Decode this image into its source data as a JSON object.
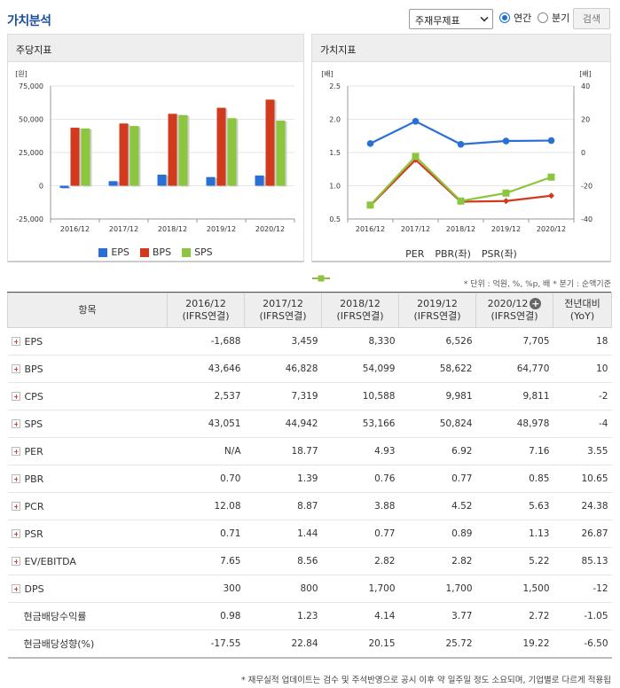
{
  "header": {
    "title": "가치분석",
    "select_value": "주재무제표",
    "radio_annual": "연간",
    "radio_quarter": "분기",
    "search_label": "검색"
  },
  "left_panel": {
    "title": "주당지표",
    "unit": "[원]",
    "chart_data": {
      "type": "bar",
      "categories": [
        "2016/12",
        "2017/12",
        "2018/12",
        "2019/12",
        "2020/12"
      ],
      "series": [
        {
          "name": "EPS",
          "color": "#2a6fd6",
          "values": [
            -1688,
            3459,
            8330,
            6526,
            7705
          ]
        },
        {
          "name": "BPS",
          "color": "#d23a1e",
          "values": [
            43646,
            46828,
            54099,
            58622,
            64770
          ]
        },
        {
          "name": "SPS",
          "color": "#8cc63f",
          "values": [
            43051,
            44942,
            53166,
            50824,
            48978
          ]
        }
      ],
      "ylim": [
        -25000,
        75000
      ],
      "yticks": [
        "75,000",
        "50,000",
        "25,000",
        "0",
        "-25,000"
      ],
      "ytick_values": [
        75000,
        50000,
        25000,
        0,
        -25000
      ],
      "legend": "bottom"
    }
  },
  "right_panel": {
    "title": "가치지표",
    "unit_left": "[배]",
    "unit_right": "[배]",
    "chart_data": {
      "type": "line",
      "categories": [
        "2016/12",
        "2017/12",
        "2018/12",
        "2019/12",
        "2020/12"
      ],
      "series": [
        {
          "name": "PER",
          "axis": "right",
          "color": "#2a6fd6",
          "marker": "circle",
          "values": [
            null,
            18.77,
            4.93,
            6.92,
            7.16
          ]
        },
        {
          "name": "PBR(좌)",
          "axis": "left",
          "color": "#d23a1e",
          "marker": "diamond",
          "values": [
            0.7,
            1.39,
            0.76,
            0.77,
            0.85
          ]
        },
        {
          "name": "PSR(좌)",
          "axis": "left",
          "color": "#8cc63f",
          "marker": "square",
          "values": [
            0.71,
            1.44,
            0.77,
            0.89,
            1.13
          ]
        }
      ],
      "ylim_left": [
        0.5,
        2.5
      ],
      "yticks_left": [
        "2.5",
        "2.0",
        "1.5",
        "1.0",
        "0.5"
      ],
      "ytick_values_left": [
        2.5,
        2.0,
        1.5,
        1.0,
        0.5
      ],
      "ylim_right": [
        -40,
        40
      ],
      "yticks_right": [
        "40",
        "20",
        "0",
        "-20",
        "-40"
      ],
      "ytick_values_right": [
        40,
        20,
        0,
        -20,
        -40
      ],
      "per_marker_2016": 5.4,
      "legend": "bottom"
    }
  },
  "unit_note": "* 단위 : 억원, %, %p, 배   * 분기 : 순액기준",
  "table": {
    "headers": [
      {
        "l1": "항목",
        "l2": ""
      },
      {
        "l1": "2016/12",
        "l2": "(IFRS연결)"
      },
      {
        "l1": "2017/12",
        "l2": "(IFRS연결)"
      },
      {
        "l1": "2018/12",
        "l2": "(IFRS연결)"
      },
      {
        "l1": "2019/12",
        "l2": "(IFRS연결)"
      },
      {
        "l1": "2020/12",
        "l2": "(IFRS연결)"
      },
      {
        "l1": "전년대비",
        "l2": "(YoY)"
      }
    ],
    "rows": [
      {
        "label": "EPS",
        "plus": true,
        "cells": [
          "-1,688",
          "3,459",
          "8,330",
          "6,526",
          "7,705",
          "18"
        ]
      },
      {
        "label": "BPS",
        "plus": true,
        "cells": [
          "43,646",
          "46,828",
          "54,099",
          "58,622",
          "64,770",
          "10"
        ]
      },
      {
        "label": "CPS",
        "plus": true,
        "cells": [
          "2,537",
          "7,319",
          "10,588",
          "9,981",
          "9,811",
          "-2"
        ]
      },
      {
        "label": "SPS",
        "plus": true,
        "cells": [
          "43,051",
          "44,942",
          "53,166",
          "50,824",
          "48,978",
          "-4"
        ]
      },
      {
        "label": "PER",
        "plus": true,
        "cells": [
          "N/A",
          "18.77",
          "4.93",
          "6.92",
          "7.16",
          "3.55"
        ]
      },
      {
        "label": "PBR",
        "plus": true,
        "cells": [
          "0.70",
          "1.39",
          "0.76",
          "0.77",
          "0.85",
          "10.65"
        ]
      },
      {
        "label": "PCR",
        "plus": true,
        "cells": [
          "12.08",
          "8.87",
          "3.88",
          "4.52",
          "5.63",
          "24.38"
        ]
      },
      {
        "label": "PSR",
        "plus": true,
        "cells": [
          "0.71",
          "1.44",
          "0.77",
          "0.89",
          "1.13",
          "26.87"
        ]
      },
      {
        "label": "EV/EBITDA",
        "plus": true,
        "cells": [
          "7.65",
          "8.56",
          "2.82",
          "2.82",
          "5.22",
          "85.13"
        ]
      },
      {
        "label": "DPS",
        "plus": true,
        "cells": [
          "300",
          "800",
          "1,700",
          "1,700",
          "1,500",
          "-12"
        ]
      },
      {
        "label": "현금배당수익률",
        "plus": false,
        "cells": [
          "0.98",
          "1.23",
          "4.14",
          "3.77",
          "2.72",
          "-1.05"
        ]
      },
      {
        "label": "현금배당성향(%)",
        "plus": false,
        "cells": [
          "-17.55",
          "22.84",
          "20.15",
          "25.72",
          "19.22",
          "-6.50"
        ]
      }
    ]
  },
  "footnote": "* 재무실적 업데이트는 검수 및 주석반영으로 공시 이후 약 일주일 정도 소요되며, 기업별로 다르게 적용됩"
}
